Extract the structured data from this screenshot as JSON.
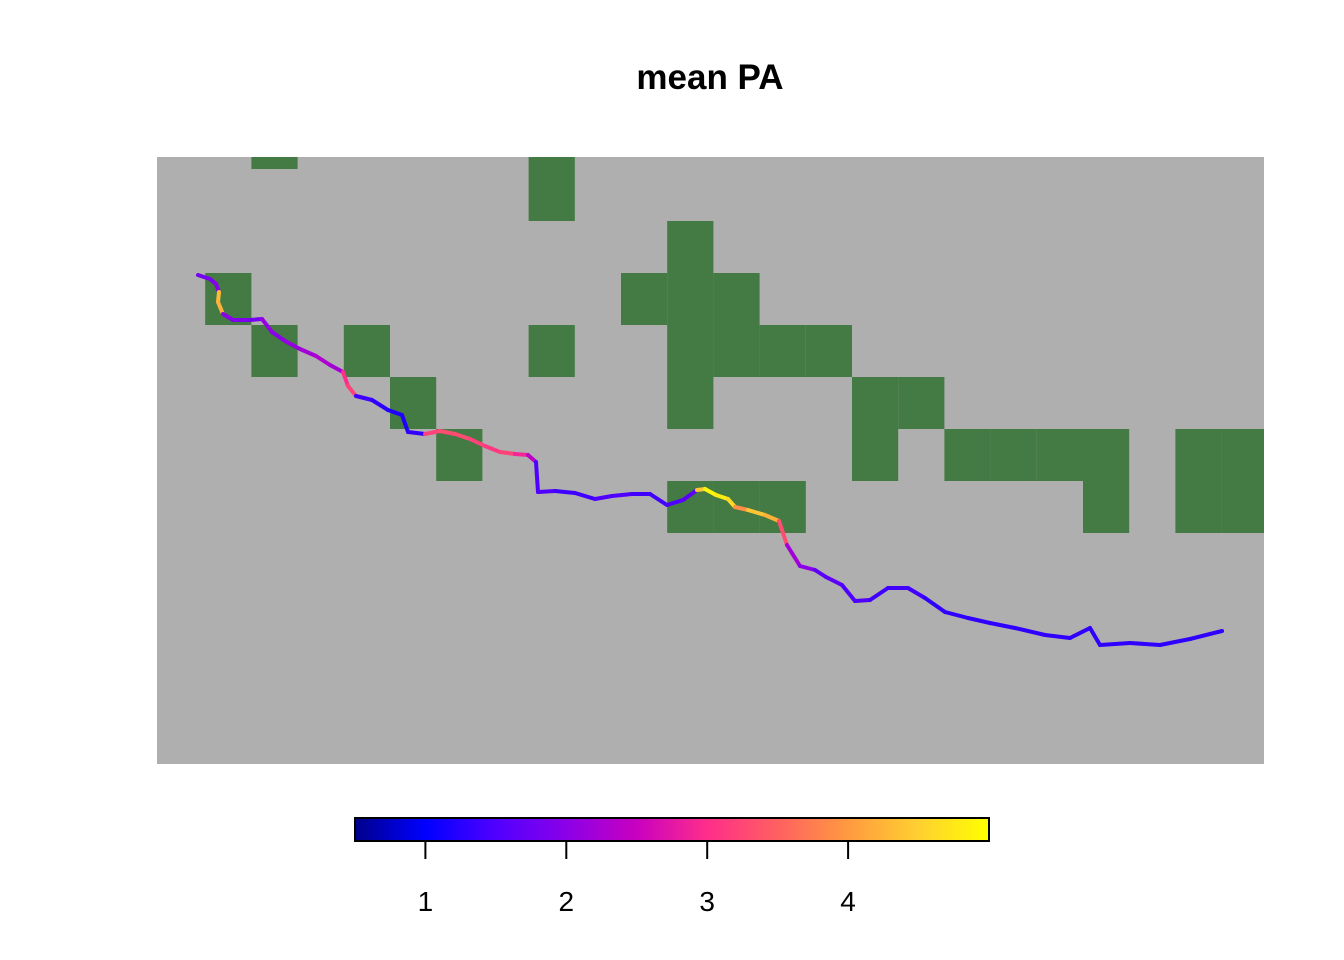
{
  "title": "mean PA",
  "colors": {
    "background_raster": "#AFAFAF",
    "protected_area": "#447A44",
    "legend_border": "#000000",
    "legend_gradient": [
      "#00008B",
      "#0000FF",
      "#5000FF",
      "#8B00E8",
      "#C800C0",
      "#FF2E8A",
      "#FF6060",
      "#FF9A40",
      "#FFD030",
      "#FFFF00"
    ]
  },
  "legend": {
    "name": "color-scale",
    "range": [
      0.5,
      5
    ],
    "ticks": [
      "1",
      "2",
      "3",
      "4"
    ],
    "tick_values": [
      1,
      2,
      3,
      4
    ]
  },
  "map": {
    "raster_grid": {
      "columns": 24,
      "rows": 12,
      "protected_cells": [
        [
          2,
          0
        ],
        [
          8,
          0
        ],
        [
          8,
          1
        ],
        [
          11,
          2
        ],
        [
          1,
          3
        ],
        [
          10,
          3
        ],
        [
          11,
          3
        ],
        [
          12,
          3
        ],
        [
          2,
          4
        ],
        [
          4,
          4
        ],
        [
          8,
          4
        ],
        [
          11,
          4
        ],
        [
          12,
          4
        ],
        [
          13,
          4
        ],
        [
          14,
          4
        ],
        [
          5,
          5
        ],
        [
          11,
          5
        ],
        [
          15,
          5
        ],
        [
          16,
          5
        ],
        [
          6,
          6
        ],
        [
          15,
          6
        ],
        [
          17,
          6
        ],
        [
          18,
          6
        ],
        [
          19,
          6
        ],
        [
          20,
          6
        ],
        [
          22,
          6
        ],
        [
          23,
          6
        ],
        [
          11,
          7
        ],
        [
          12,
          7
        ],
        [
          13,
          7
        ],
        [
          20,
          7
        ],
        [
          22,
          7
        ],
        [
          23,
          7
        ]
      ]
    },
    "route_values": [
      1.8,
      1.9,
      2.0,
      4.3,
      4.2,
      2.0,
      1.9,
      1.8,
      2.1,
      2.0,
      2.1,
      2.2,
      2.3,
      2.2,
      3.0,
      3.2,
      1.4,
      1.3,
      1.2,
      1.2,
      1.3,
      3.2,
      3.3,
      3.3,
      3.2,
      3.1,
      3.2,
      2.9,
      2.4,
      1.5,
      1.5,
      1.4,
      1.4,
      1.5,
      1.5,
      1.4,
      1.4,
      1.5,
      1.6,
      4.4,
      4.9,
      4.8,
      4.6,
      3.9,
      4.4,
      4.2,
      3.3,
      2.2,
      2.0,
      1.6,
      1.6,
      1.5,
      1.5,
      1.4,
      1.4,
      1.4,
      1.3,
      1.3,
      1.3,
      1.3,
      1.3,
      1.3,
      1.3,
      1.3,
      1.3,
      1.3
    ]
  }
}
